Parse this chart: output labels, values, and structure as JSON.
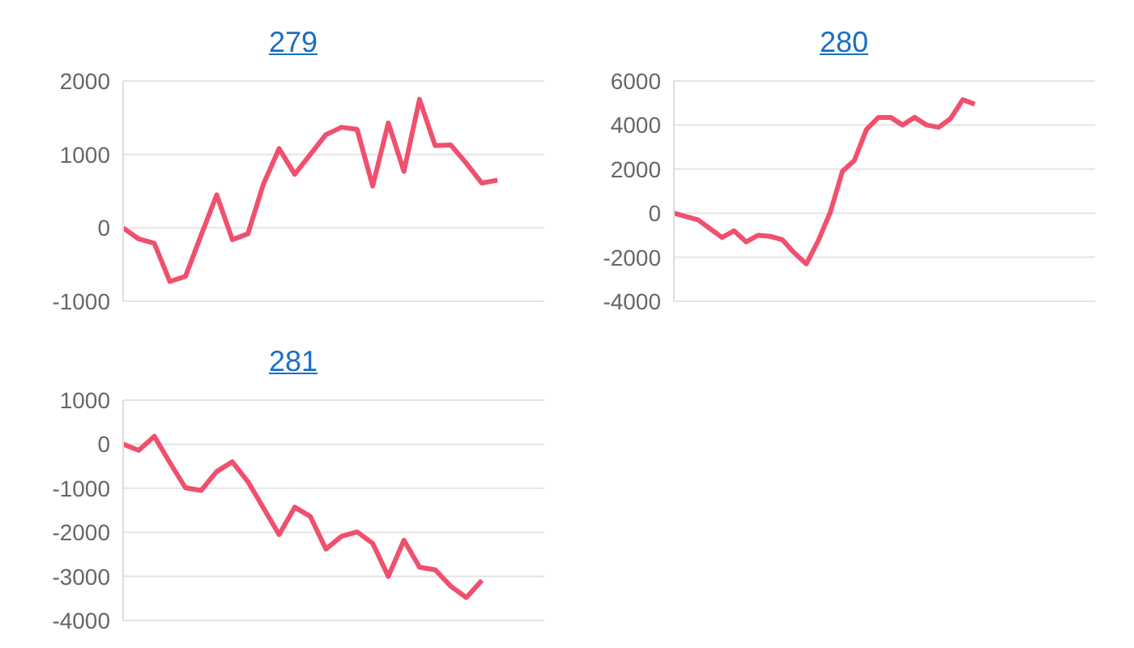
{
  "chart_data": [
    {
      "type": "line",
      "title": "279",
      "categories": [
        null,
        null,
        null,
        null,
        null,
        null,
        null,
        null,
        null,
        null,
        null,
        null,
        null,
        null,
        null,
        null,
        null,
        null,
        null,
        null,
        null,
        null,
        null,
        null,
        null,
        null,
        null,
        null
      ],
      "series": [
        {
          "color": "#f0506e",
          "values": [
            0,
            -150,
            -210,
            -730,
            -660,
            -100,
            450,
            -160,
            -80,
            600,
            1080,
            730,
            1000,
            1270,
            1370,
            1340,
            570,
            1430,
            770,
            1750,
            1120,
            1130,
            880,
            610,
            650,
            null,
            null,
            null
          ]
        }
      ],
      "ylim": [
        -1000,
        2000
      ],
      "yticks": [
        -1000,
        0,
        1000,
        2000
      ],
      "grid": "y",
      "tick_labels": "y",
      "marker": "none"
    },
    {
      "type": "line",
      "title": "280",
      "categories": [
        null,
        null,
        null,
        null,
        null,
        null,
        null,
        null,
        null,
        null,
        null,
        null,
        null,
        null,
        null,
        null,
        null,
        null,
        null,
        null,
        null,
        null,
        null,
        null,
        null,
        null,
        null,
        null,
        null,
        null,
        null,
        null,
        null,
        null,
        null,
        null
      ],
      "series": [
        {
          "color": "#f0506e",
          "values": [
            0,
            -150,
            -300,
            -700,
            -1100,
            -800,
            -1300,
            -1000,
            -1050,
            -1200,
            -1800,
            -2300,
            -1250,
            50,
            1900,
            2400,
            3800,
            4350,
            4350,
            4000,
            4350,
            4000,
            3900,
            4300,
            5150,
            4950,
            null,
            null,
            null,
            null,
            null,
            null,
            null,
            null,
            null,
            null
          ]
        }
      ],
      "ylim": [
        -4000,
        6000
      ],
      "yticks": [
        -4000,
        -2000,
        0,
        2000,
        4000,
        6000
      ],
      "grid": "y",
      "tick_labels": "y",
      "marker": "none"
    },
    {
      "type": "line",
      "title": "281",
      "categories": [
        null,
        null,
        null,
        null,
        null,
        null,
        null,
        null,
        null,
        null,
        null,
        null,
        null,
        null,
        null,
        null,
        null,
        null,
        null,
        null,
        null,
        null,
        null,
        null,
        null,
        null,
        null,
        null
      ],
      "series": [
        {
          "color": "#f0506e",
          "values": [
            0,
            -140,
            180,
            -420,
            -990,
            -1050,
            -620,
            -400,
            -850,
            -1450,
            -2050,
            -1430,
            -1640,
            -2380,
            -2090,
            -1990,
            -2250,
            -3000,
            -2180,
            -2790,
            -2850,
            -3220,
            -3480,
            -3090,
            null,
            null,
            null,
            null
          ]
        }
      ],
      "ylim": [
        -4000,
        1000
      ],
      "yticks": [
        -4000,
        -3000,
        -2000,
        -1000,
        0,
        1000
      ],
      "grid": "y",
      "tick_labels": "y",
      "marker": "none"
    }
  ]
}
